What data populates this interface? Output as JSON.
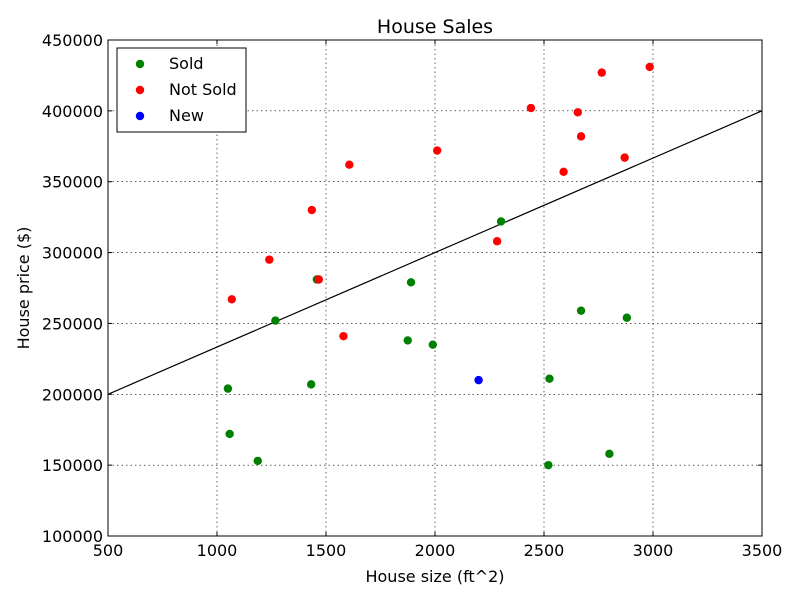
{
  "chart_data": {
    "type": "scatter",
    "title": "House Sales",
    "xlabel": "House size (ft^2)",
    "ylabel": "House price ($)",
    "xlim": [
      500,
      3500
    ],
    "ylim": [
      100000,
      450000
    ],
    "xticks": [
      500,
      1000,
      1500,
      2000,
      2500,
      3000,
      3500
    ],
    "yticks": [
      100000,
      150000,
      200000,
      250000,
      300000,
      350000,
      400000,
      450000
    ],
    "grid": true,
    "legend_position": "top-left",
    "series": [
      {
        "name": "Sold",
        "color": "#008000",
        "points": [
          [
            1050,
            204000
          ],
          [
            1058,
            172000
          ],
          [
            1187,
            153000
          ],
          [
            1268,
            252000
          ],
          [
            1432,
            207000
          ],
          [
            1458,
            281000
          ],
          [
            1875,
            238000
          ],
          [
            1890,
            279000
          ],
          [
            1990,
            235000
          ],
          [
            2303,
            322000
          ],
          [
            2520,
            150000
          ],
          [
            2525,
            211000
          ],
          [
            2670,
            259000
          ],
          [
            2800,
            158000
          ],
          [
            2880,
            254000
          ]
        ]
      },
      {
        "name": "Not Sold",
        "color": "#ff0000",
        "points": [
          [
            1068,
            267000
          ],
          [
            1240,
            295000
          ],
          [
            1435,
            330000
          ],
          [
            1467,
            281000
          ],
          [
            1580,
            241000
          ],
          [
            1607,
            362000
          ],
          [
            2010,
            372000
          ],
          [
            2285,
            308000
          ],
          [
            2440,
            402000
          ],
          [
            2590,
            357000
          ],
          [
            2655,
            399000
          ],
          [
            2670,
            382000
          ],
          [
            2765,
            427000
          ],
          [
            2870,
            367000
          ],
          [
            2985,
            431000
          ]
        ]
      },
      {
        "name": "New",
        "color": "#0000ff",
        "points": [
          [
            2200,
            210000
          ]
        ]
      }
    ],
    "line": {
      "color": "#000000",
      "points": [
        [
          500,
          200000
        ],
        [
          3500,
          400000
        ]
      ]
    }
  }
}
